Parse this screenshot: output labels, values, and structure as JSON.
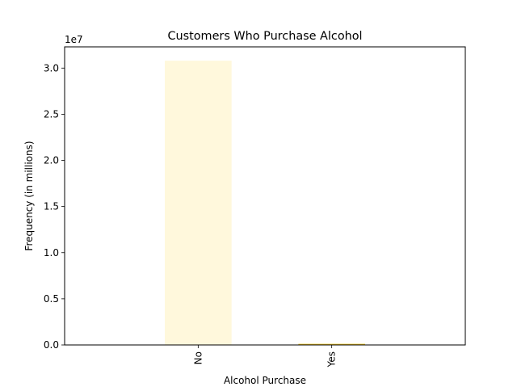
{
  "chart_data": {
    "type": "bar",
    "title": "Customers Who Purchase Alcohol",
    "xlabel": "Alcohol Purchase",
    "ylabel": "Frequency (in millions)",
    "scale_label": "1e7",
    "categories": [
      "No",
      "Yes"
    ],
    "values": [
      30800000,
      120000
    ],
    "colors": [
      "#fff8dc",
      "#f0c020"
    ],
    "ylim": [
      0,
      32300000
    ],
    "yticks": [
      0,
      5000000,
      10000000,
      15000000,
      20000000,
      25000000,
      30000000
    ],
    "ytick_labels": [
      "0.0",
      "0.5",
      "1.0",
      "1.5",
      "2.0",
      "2.5",
      "3.0"
    ],
    "grid": false,
    "legend": "none"
  }
}
